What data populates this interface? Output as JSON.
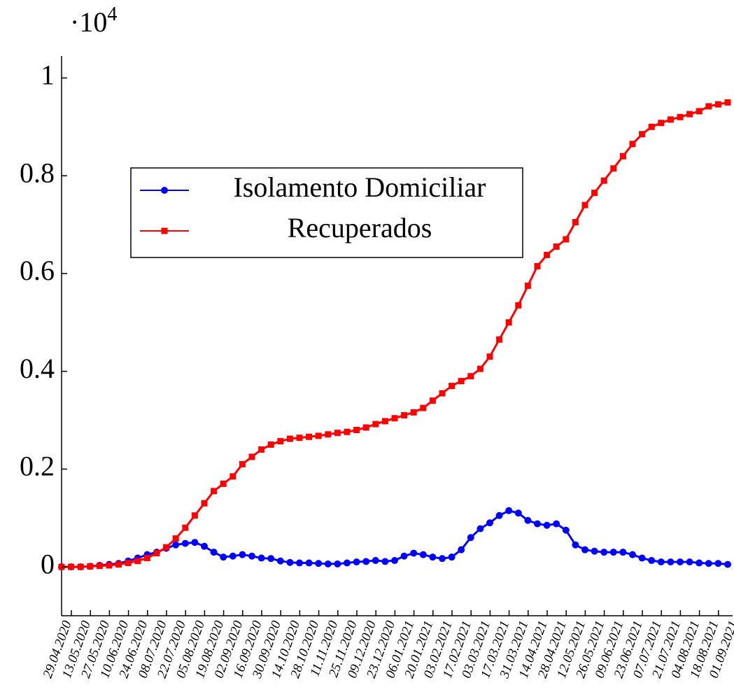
{
  "chart_data": {
    "type": "line",
    "y_multiplier": {
      "base": "·10",
      "exponent": "4"
    },
    "categories": [
      "29.04.2020",
      null,
      "13.05.2020",
      null,
      "27.05.2020",
      null,
      "10.06.2020",
      null,
      "24.06.2020",
      null,
      "08.07.2020",
      null,
      "22.07.2020",
      null,
      "05.08.2020",
      null,
      "19.08.2020",
      null,
      "02.09.2020",
      null,
      "16.09.2020",
      null,
      "30.09.2020",
      null,
      "14.10.2020",
      null,
      "28.10.2020",
      null,
      "11.11.2020",
      null,
      "25.11.2020",
      null,
      "09.12.2020",
      null,
      "23.12.2020",
      null,
      "06.01.2021",
      null,
      "20.01.2021",
      null,
      "03.02.2021",
      null,
      "17.02.2021",
      null,
      "03.03.2021",
      null,
      "17.03.2021",
      null,
      "31.03.2021",
      null,
      "14.04.2021",
      null,
      "28.04.2021",
      null,
      "12.05.2021",
      null,
      "26.05.2021",
      null,
      "09.06.2021",
      null,
      "23.06.2021",
      null,
      "07.07.2021",
      null,
      "21.07.2021",
      null,
      "04.08.2021",
      null,
      "18.08.2021",
      null,
      "01.09.2021"
    ],
    "series": [
      {
        "name": "Isolamento Domiciliar",
        "color": "#0000ff",
        "marker": "circle",
        "values": [
          0,
          0,
          0,
          0.001,
          0.003,
          0.005,
          0.007,
          0.012,
          0.018,
          0.025,
          0.03,
          0.038,
          0.045,
          0.048,
          0.05,
          0.042,
          0.03,
          0.02,
          0.022,
          0.025,
          0.022,
          0.018,
          0.017,
          0.012,
          0.009,
          0.008,
          0.008,
          0.007,
          0.006,
          0.006,
          0.008,
          0.01,
          0.011,
          0.013,
          0.011,
          0.013,
          0.022,
          0.028,
          0.025,
          0.02,
          0.017,
          0.02,
          0.035,
          0.06,
          0.078,
          0.09,
          0.105,
          0.115,
          0.11,
          0.095,
          0.088,
          0.085,
          0.088,
          0.075,
          0.045,
          0.035,
          0.032,
          0.03,
          0.03,
          0.03,
          0.025,
          0.018,
          0.013,
          0.01,
          0.01,
          0.01,
          0.01,
          0.008,
          0.007,
          0.007,
          0.005
        ]
      },
      {
        "name": "Recuperados",
        "color": "#ff0000",
        "marker": "square",
        "values": [
          0,
          0,
          0,
          0.001,
          0.002,
          0.003,
          0.005,
          0.008,
          0.012,
          0.018,
          0.028,
          0.04,
          0.058,
          0.08,
          0.105,
          0.13,
          0.155,
          0.17,
          0.185,
          0.21,
          0.225,
          0.24,
          0.25,
          0.257,
          0.262,
          0.264,
          0.266,
          0.268,
          0.271,
          0.274,
          0.276,
          0.28,
          0.285,
          0.292,
          0.298,
          0.304,
          0.31,
          0.316,
          0.325,
          0.34,
          0.355,
          0.37,
          0.38,
          0.39,
          0.405,
          0.43,
          0.465,
          0.5,
          0.535,
          0.575,
          0.615,
          0.638,
          0.655,
          0.67,
          0.705,
          0.74,
          0.765,
          0.79,
          0.815,
          0.84,
          0.865,
          0.885,
          0.9,
          0.908,
          0.915,
          0.92,
          0.926,
          0.932,
          0.942,
          0.946,
          0.95
        ]
      }
    ],
    "ylim": [
      -0.1,
      1.045
    ],
    "yticks": [
      0,
      0.2,
      0.4,
      0.6,
      0.8,
      1
    ],
    "grid": false,
    "legend_position": "upper left"
  }
}
